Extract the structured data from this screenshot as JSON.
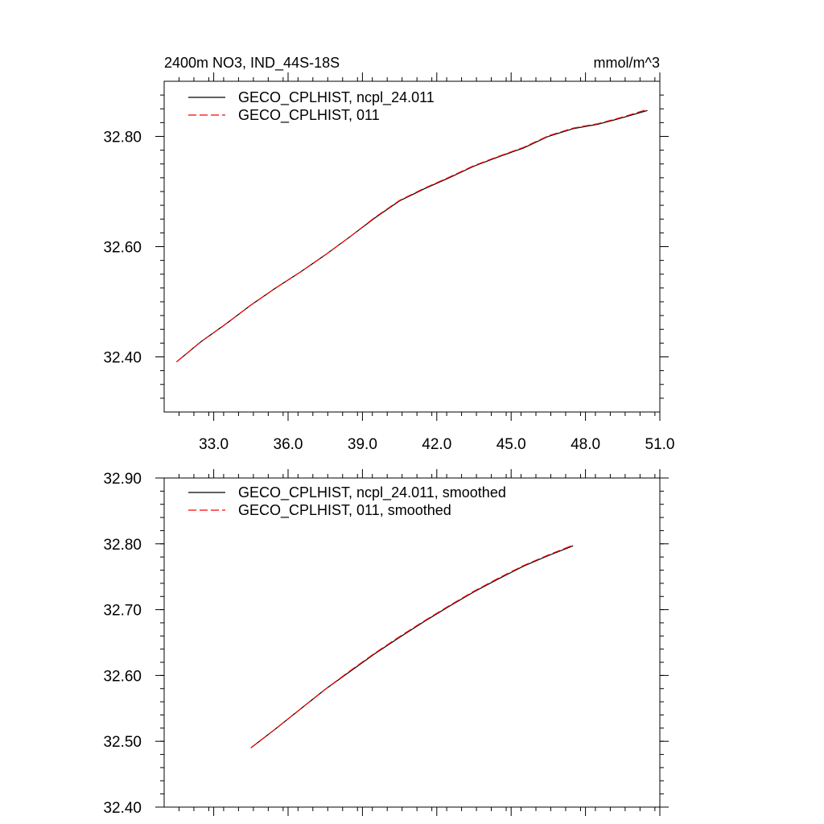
{
  "chart_data": [
    {
      "type": "line",
      "title": "2400m NO3, IND_44S-18S",
      "units": "mmol/m^3",
      "xlabel": "",
      "ylabel": "",
      "xlim": [
        31.0,
        51.0
      ],
      "ylim": [
        32.3,
        32.9
      ],
      "xticks": [
        33.0,
        36.0,
        39.0,
        42.0,
        45.0,
        48.0,
        51.0
      ],
      "xtick_labels": [
        "33.0",
        "36.0",
        "39.0",
        "42.0",
        "45.0",
        "48.0",
        "51.0"
      ],
      "yticks": [
        32.4,
        32.6,
        32.8
      ],
      "ytick_labels": [
        "32.40",
        "32.60",
        "32.80"
      ],
      "legend_position": "top-left",
      "grid": false,
      "series": [
        {
          "name": "GECO_CPLHIST, ncpl_24.011",
          "color": "#000000",
          "dash": "solid",
          "x": [
            31.5,
            32.5,
            33.5,
            34.5,
            35.5,
            36.5,
            37.5,
            38.5,
            39.5,
            40.5,
            41.5,
            42.5,
            43.5,
            44.5,
            45.5,
            46.5,
            47.5,
            48.5,
            49.5,
            50.5
          ],
          "y": [
            32.391,
            32.428,
            32.46,
            32.494,
            32.525,
            32.554,
            32.585,
            32.618,
            32.652,
            32.683,
            32.705,
            32.725,
            32.746,
            32.763,
            32.779,
            32.8,
            32.814,
            32.822,
            32.834,
            32.847
          ]
        },
        {
          "name": "GECO_CPLHIST, 011",
          "color": "#ff0000",
          "dash": "dashed",
          "x": [
            31.5,
            32.5,
            33.5,
            34.5,
            35.5,
            36.5,
            37.5,
            38.5,
            39.5,
            40.5,
            41.5,
            42.5,
            43.5,
            44.5,
            45.5,
            46.5,
            47.5,
            48.5,
            49.5,
            50.5
          ],
          "y": [
            32.391,
            32.428,
            32.46,
            32.494,
            32.525,
            32.554,
            32.585,
            32.618,
            32.653,
            32.684,
            32.706,
            32.726,
            32.747,
            32.764,
            32.78,
            32.801,
            32.815,
            32.823,
            32.835,
            32.849
          ]
        }
      ]
    },
    {
      "type": "line",
      "title": "",
      "xlabel": "",
      "ylabel": "",
      "xlim": [
        31.0,
        51.0
      ],
      "ylim": [
        32.4,
        32.9
      ],
      "xticks": [
        33.0,
        36.0,
        39.0,
        42.0,
        45.0,
        48.0,
        51.0
      ],
      "xtick_labels": [],
      "yticks": [
        32.4,
        32.5,
        32.6,
        32.7,
        32.8,
        32.9
      ],
      "ytick_labels": [
        "32.40",
        "32.50",
        "32.60",
        "32.70",
        "32.80",
        "32.90"
      ],
      "legend_position": "top-left",
      "grid": false,
      "series": [
        {
          "name": "GECO_CPLHIST, ncpl_24.011, smoothed",
          "color": "#000000",
          "dash": "solid",
          "x": [
            34.5,
            35.5,
            36.5,
            37.5,
            38.5,
            39.5,
            40.5,
            41.5,
            42.5,
            43.5,
            44.5,
            45.5,
            46.5,
            47.5
          ],
          "y": [
            32.49,
            32.519,
            32.549,
            32.579,
            32.606,
            32.633,
            32.658,
            32.682,
            32.705,
            32.727,
            32.747,
            32.766,
            32.782,
            32.797
          ]
        },
        {
          "name": "GECO_CPLHIST, 011, smoothed",
          "color": "#ff0000",
          "dash": "dashed",
          "x": [
            34.5,
            35.5,
            36.5,
            37.5,
            38.5,
            39.5,
            40.5,
            41.5,
            42.5,
            43.5,
            44.5,
            45.5,
            46.5,
            47.5
          ],
          "y": [
            32.49,
            32.519,
            32.549,
            32.579,
            32.607,
            32.634,
            32.659,
            32.683,
            32.706,
            32.728,
            32.748,
            32.767,
            32.783,
            32.798
          ]
        }
      ]
    }
  ]
}
